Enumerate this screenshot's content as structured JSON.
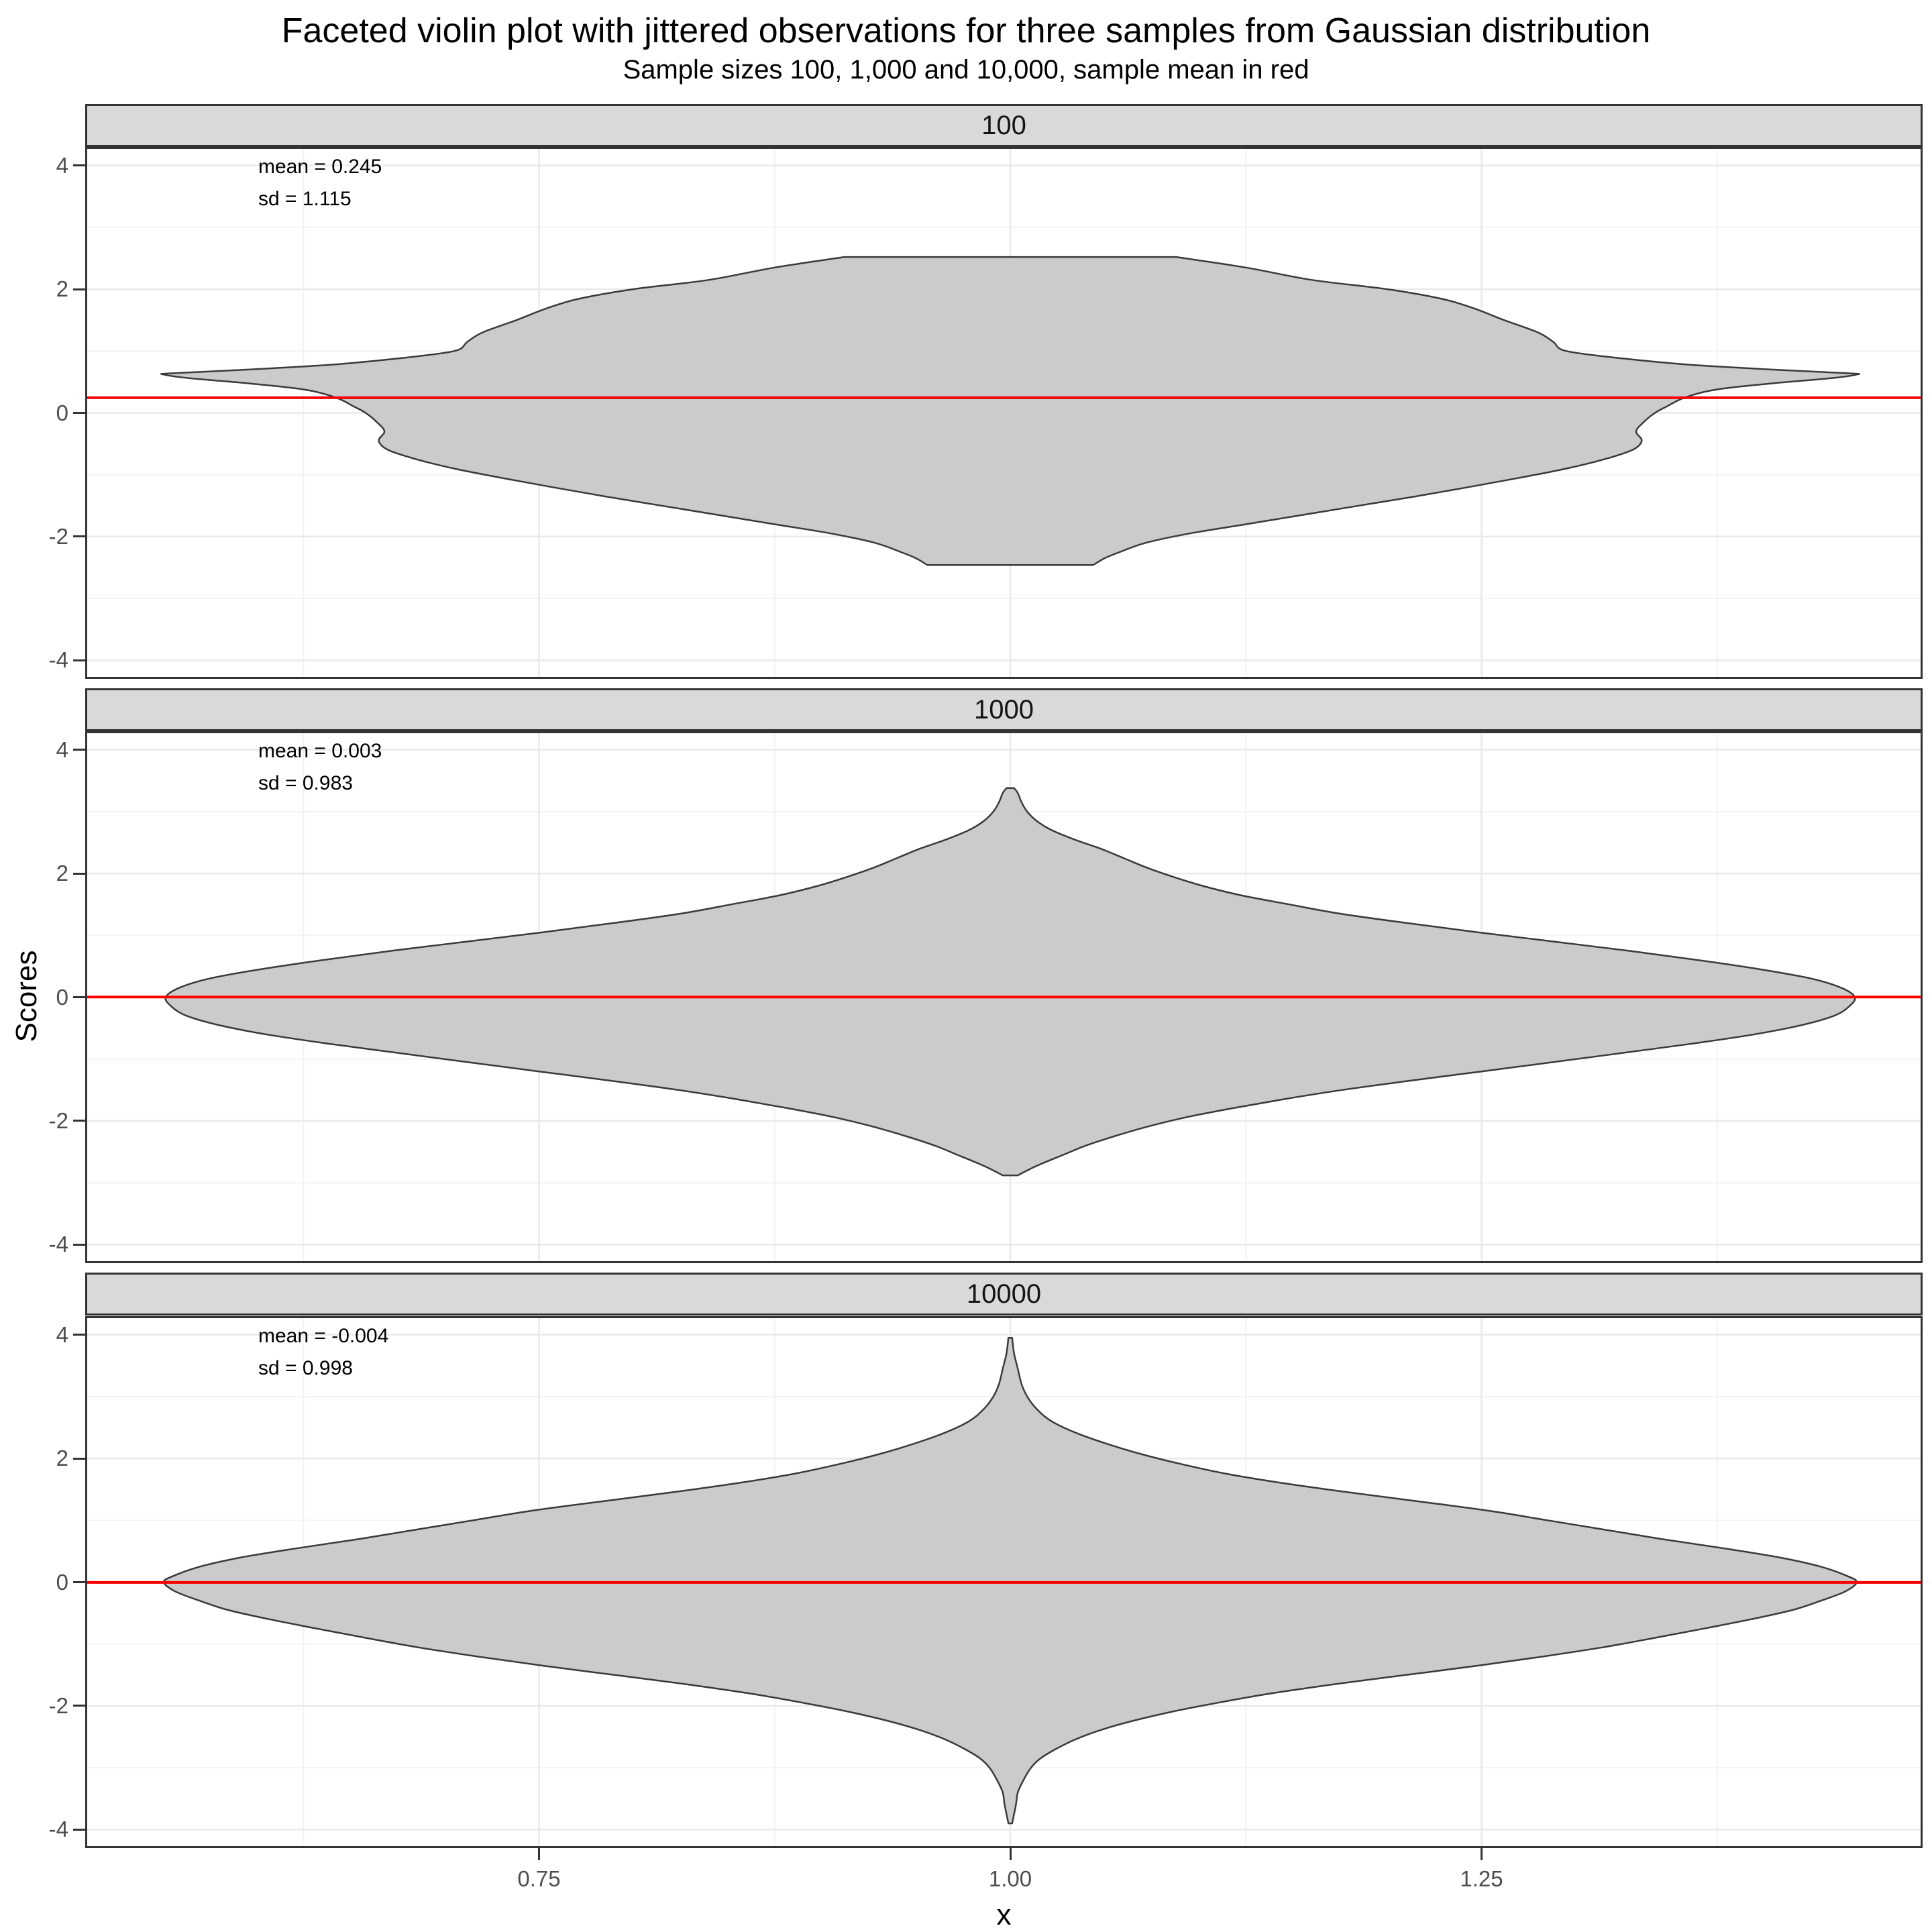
{
  "title": "Faceted violin plot with jittered observations for three samples from Gaussian distribution",
  "subtitle": "Sample sizes 100, 1,000 and 10,000, sample mean in red",
  "x_axis": {
    "label": "x",
    "tick_labels": [
      "0.75",
      "1.00",
      "1.25"
    ]
  },
  "y_axis": {
    "label": "Scores",
    "tick_labels": [
      "4",
      "2",
      "0",
      "-2",
      "-4"
    ]
  },
  "colors": {
    "red_mean_line": "#FF0000",
    "violin_fill": "#CBCBCB",
    "violin_stroke": "#3A3A3A",
    "strip_fill": "#D9D9D9",
    "panel_border": "#333333",
    "grid_major": "#E9E9E9",
    "grid_minor": "#F3F3F3",
    "tick_text": "#4D4D4D"
  },
  "chart_data": {
    "type": "violin",
    "orientation": "vertical",
    "x_center": 1.0,
    "ylim": [
      -4.3,
      4.3
    ],
    "xlim": [
      0.51,
      1.49
    ],
    "y_major": [
      4,
      2,
      0,
      -2,
      -4
    ],
    "y_minor": [
      3,
      1,
      -1,
      -3
    ],
    "x_major": [
      0.75,
      1.0,
      1.25
    ],
    "x_minor": [
      0.625,
      0.875,
      1.125,
      1.375
    ],
    "grid": true,
    "facets": [
      {
        "label": "100",
        "n": 100,
        "mean": 0.245,
        "sd": 1.115,
        "annotation": [
          "mean = 0.245",
          "sd = 1.115"
        ],
        "data_range": [
          -2.46,
          2.52
        ],
        "density_profile": [
          [
            2.52,
            0.088
          ],
          [
            2.35,
            0.125
          ],
          [
            2.15,
            0.16
          ],
          [
            2.0,
            0.2
          ],
          [
            1.85,
            0.228
          ],
          [
            1.7,
            0.245
          ],
          [
            1.5,
            0.262
          ],
          [
            1.3,
            0.28
          ],
          [
            1.15,
            0.288
          ],
          [
            1.0,
            0.295
          ],
          [
            0.88,
            0.325
          ],
          [
            0.78,
            0.36
          ],
          [
            0.7,
            0.405
          ],
          [
            0.64,
            0.445
          ],
          [
            0.62,
            0.449
          ],
          [
            0.56,
            0.435
          ],
          [
            0.48,
            0.405
          ],
          [
            0.38,
            0.375
          ],
          [
            0.25,
            0.358
          ],
          [
            0.1,
            0.348
          ],
          [
            0.0,
            0.342
          ],
          [
            -0.15,
            0.336
          ],
          [
            -0.3,
            0.332
          ],
          [
            -0.45,
            0.335
          ],
          [
            -0.6,
            0.33
          ],
          [
            -0.75,
            0.315
          ],
          [
            -0.9,
            0.295
          ],
          [
            -1.05,
            0.27
          ],
          [
            -1.2,
            0.243
          ],
          [
            -1.35,
            0.215
          ],
          [
            -1.5,
            0.185
          ],
          [
            -1.65,
            0.155
          ],
          [
            -1.8,
            0.125
          ],
          [
            -1.95,
            0.095
          ],
          [
            -2.1,
            0.072
          ],
          [
            -2.25,
            0.058
          ],
          [
            -2.35,
            0.05
          ],
          [
            -2.46,
            0.044
          ]
        ]
      },
      {
        "label": "1000",
        "n": 1000,
        "mean": 0.003,
        "sd": 0.983,
        "annotation": [
          "mean = 0.003",
          "sd = 0.983"
        ],
        "data_range": [
          -2.88,
          3.38
        ],
        "density_profile": [
          [
            3.38,
            0.002
          ],
          [
            3.3,
            0.004
          ],
          [
            3.15,
            0.006
          ],
          [
            3.0,
            0.009
          ],
          [
            2.85,
            0.014
          ],
          [
            2.7,
            0.022
          ],
          [
            2.55,
            0.034
          ],
          [
            2.4,
            0.048
          ],
          [
            2.25,
            0.06
          ],
          [
            2.1,
            0.072
          ],
          [
            1.95,
            0.086
          ],
          [
            1.8,
            0.102
          ],
          [
            1.65,
            0.122
          ],
          [
            1.5,
            0.148
          ],
          [
            1.35,
            0.175
          ],
          [
            1.2,
            0.21
          ],
          [
            1.05,
            0.248
          ],
          [
            0.9,
            0.288
          ],
          [
            0.75,
            0.328
          ],
          [
            0.6,
            0.365
          ],
          [
            0.45,
            0.398
          ],
          [
            0.3,
            0.425
          ],
          [
            0.15,
            0.441
          ],
          [
            0.0,
            0.448
          ],
          [
            -0.15,
            0.445
          ],
          [
            -0.3,
            0.437
          ],
          [
            -0.45,
            0.42
          ],
          [
            -0.6,
            0.395
          ],
          [
            -0.75,
            0.362
          ],
          [
            -0.9,
            0.325
          ],
          [
            -1.05,
            0.288
          ],
          [
            -1.2,
            0.25
          ],
          [
            -1.35,
            0.212
          ],
          [
            -1.5,
            0.176
          ],
          [
            -1.65,
            0.145
          ],
          [
            -1.8,
            0.117
          ],
          [
            -1.95,
            0.092
          ],
          [
            -2.1,
            0.072
          ],
          [
            -2.25,
            0.055
          ],
          [
            -2.4,
            0.04
          ],
          [
            -2.55,
            0.028
          ],
          [
            -2.7,
            0.016
          ],
          [
            -2.8,
            0.009
          ],
          [
            -2.88,
            0.004
          ]
        ]
      },
      {
        "label": "10000",
        "n": 10000,
        "mean": -0.004,
        "sd": 0.998,
        "annotation": [
          "mean = -0.004",
          "sd = 0.998"
        ],
        "data_range": [
          -3.9,
          3.95
        ],
        "density_profile": [
          [
            3.95,
            0.001
          ],
          [
            3.7,
            0.002
          ],
          [
            3.45,
            0.004
          ],
          [
            3.2,
            0.006
          ],
          [
            3.0,
            0.009
          ],
          [
            2.8,
            0.014
          ],
          [
            2.6,
            0.022
          ],
          [
            2.4,
            0.036
          ],
          [
            2.2,
            0.055
          ],
          [
            2.05,
            0.072
          ],
          [
            1.9,
            0.092
          ],
          [
            1.75,
            0.115
          ],
          [
            1.6,
            0.145
          ],
          [
            1.45,
            0.18
          ],
          [
            1.3,
            0.218
          ],
          [
            1.15,
            0.255
          ],
          [
            1.0,
            0.285
          ],
          [
            0.85,
            0.315
          ],
          [
            0.7,
            0.345
          ],
          [
            0.55,
            0.378
          ],
          [
            0.4,
            0.408
          ],
          [
            0.25,
            0.43
          ],
          [
            0.1,
            0.444
          ],
          [
            0.0,
            0.449
          ],
          [
            -0.15,
            0.443
          ],
          [
            -0.3,
            0.43
          ],
          [
            -0.45,
            0.415
          ],
          [
            -0.6,
            0.393
          ],
          [
            -0.75,
            0.368
          ],
          [
            -0.9,
            0.342
          ],
          [
            -1.05,
            0.315
          ],
          [
            -1.2,
            0.283
          ],
          [
            -1.35,
            0.248
          ],
          [
            -1.5,
            0.21
          ],
          [
            -1.65,
            0.172
          ],
          [
            -1.8,
            0.138
          ],
          [
            -1.95,
            0.11
          ],
          [
            -2.1,
            0.085
          ],
          [
            -2.25,
            0.064
          ],
          [
            -2.4,
            0.047
          ],
          [
            -2.55,
            0.034
          ],
          [
            -2.7,
            0.024
          ],
          [
            -2.85,
            0.016
          ],
          [
            -3.0,
            0.011
          ],
          [
            -3.2,
            0.007
          ],
          [
            -3.4,
            0.004
          ],
          [
            -3.6,
            0.003
          ],
          [
            -3.9,
            0.001
          ]
        ]
      }
    ]
  }
}
